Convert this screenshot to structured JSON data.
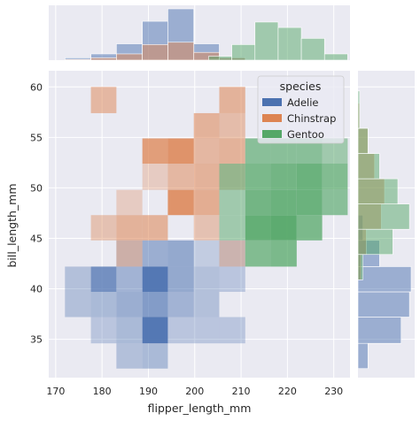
{
  "chart_data": {
    "type": "heatmap",
    "xlabel": "flipper_length_mm",
    "ylabel": "bill_length_mm",
    "xlim": [
      168.5,
      233.5
    ],
    "ylim": [
      31.2,
      61.6
    ],
    "x_ticks": [
      170,
      180,
      190,
      200,
      210,
      220,
      230
    ],
    "y_ticks": [
      35,
      40,
      45,
      50,
      55,
      60
    ],
    "grid": true,
    "background": "#eaeaf2",
    "x_bin_edges": [
      172,
      177.6,
      183.1,
      188.7,
      194.2,
      199.8,
      205.3,
      210.9,
      216.4,
      222,
      227.5,
      233
    ],
    "y_bin_edges": [
      32.1,
      34.6,
      37.2,
      39.7,
      42.2,
      44.8,
      47.3,
      49.8,
      52.4,
      54.9,
      57.4,
      60
    ],
    "legend": {
      "title": "species",
      "position": "upper-right",
      "entries": [
        {
          "name": "Adelie",
          "color": "#4c72b0"
        },
        {
          "name": "Chinstrap",
          "color": "#dd8452"
        },
        {
          "name": "Gentoo",
          "color": "#55a868"
        }
      ]
    },
    "series": [
      {
        "name": "Adelie",
        "color": "#4c72b0",
        "cells": [
          [
            0,
            2,
            0.35
          ],
          [
            0,
            3,
            0.35
          ],
          [
            1,
            1,
            0.3
          ],
          [
            1,
            2,
            0.4
          ],
          [
            1,
            3,
            0.75
          ],
          [
            2,
            0,
            0.35
          ],
          [
            2,
            1,
            0.4
          ],
          [
            2,
            2,
            0.5
          ],
          [
            2,
            3,
            0.45
          ],
          [
            2,
            4,
            0.25
          ],
          [
            3,
            0,
            0.4
          ],
          [
            3,
            1,
            0.95
          ],
          [
            3,
            2,
            0.65
          ],
          [
            3,
            3,
            0.95
          ],
          [
            3,
            4,
            0.5
          ],
          [
            4,
            1,
            0.3
          ],
          [
            4,
            2,
            0.45
          ],
          [
            4,
            3,
            0.55
          ],
          [
            4,
            4,
            0.55
          ],
          [
            5,
            1,
            0.3
          ],
          [
            5,
            2,
            0.35
          ],
          [
            5,
            3,
            0.35
          ],
          [
            5,
            4,
            0.25
          ],
          [
            6,
            1,
            0.3
          ],
          [
            6,
            3,
            0.3
          ],
          [
            6,
            4,
            0.25
          ]
        ]
      },
      {
        "name": "Chinstrap",
        "color": "#dd8452",
        "cells": [
          [
            1,
            5,
            0.4
          ],
          [
            1,
            10,
            0.5
          ],
          [
            2,
            4,
            0.4
          ],
          [
            2,
            5,
            0.55
          ],
          [
            2,
            6,
            0.3
          ],
          [
            3,
            5,
            0.55
          ],
          [
            3,
            7,
            0.3
          ],
          [
            3,
            8,
            0.75
          ],
          [
            4,
            6,
            0.85
          ],
          [
            4,
            7,
            0.5
          ],
          [
            4,
            8,
            0.85
          ],
          [
            5,
            5,
            0.4
          ],
          [
            5,
            6,
            0.6
          ],
          [
            5,
            7,
            0.55
          ],
          [
            5,
            8,
            0.5
          ],
          [
            5,
            9,
            0.55
          ],
          [
            6,
            4,
            0.35
          ],
          [
            6,
            7,
            0.35
          ],
          [
            6,
            8,
            0.55
          ],
          [
            6,
            9,
            0.45
          ],
          [
            6,
            10,
            0.55
          ]
        ]
      },
      {
        "name": "Gentoo",
        "color": "#55a868",
        "cells": [
          [
            6,
            5,
            0.5
          ],
          [
            6,
            6,
            0.5
          ],
          [
            6,
            7,
            0.55
          ],
          [
            7,
            4,
            0.7
          ],
          [
            7,
            5,
            0.9
          ],
          [
            7,
            6,
            0.8
          ],
          [
            7,
            7,
            0.75
          ],
          [
            7,
            8,
            0.65
          ],
          [
            8,
            4,
            0.75
          ],
          [
            8,
            5,
            0.95
          ],
          [
            8,
            6,
            0.85
          ],
          [
            8,
            7,
            0.8
          ],
          [
            8,
            8,
            0.65
          ],
          [
            9,
            5,
            0.75
          ],
          [
            9,
            6,
            0.85
          ],
          [
            9,
            7,
            0.85
          ],
          [
            9,
            8,
            0.65
          ],
          [
            10,
            6,
            0.65
          ],
          [
            10,
            7,
            0.7
          ],
          [
            10,
            8,
            0.5
          ]
        ]
      }
    ],
    "marginal_x": {
      "series": [
        {
          "name": "Adelie",
          "bin_edges": [
            172,
            177.6,
            183.1,
            188.7,
            194.2,
            199.8,
            205.3,
            210.9
          ],
          "counts": [
            3,
            8,
            21,
            50,
            66,
            21,
            4
          ]
        },
        {
          "name": "Chinstrap",
          "bin_edges": [
            172,
            177.6,
            183.1,
            188.7,
            194.2,
            199.8,
            205.3,
            210.9
          ],
          "counts": [
            1,
            3,
            8,
            20,
            23,
            10,
            3
          ]
        },
        {
          "name": "Gentoo",
          "bin_edges": [
            203,
            208,
            213,
            218,
            223,
            228,
            233
          ],
          "counts": [
            5,
            20,
            49,
            42,
            28,
            8
          ]
        }
      ]
    },
    "marginal_y": {
      "series": [
        {
          "name": "Adelie",
          "bin_edges": [
            32.1,
            34.6,
            37.2,
            39.7,
            42.2,
            44.8,
            47.3
          ],
          "counts": [
            6,
            26,
            31,
            32,
            13,
            3
          ]
        },
        {
          "name": "Chinstrap",
          "bin_edges": [
            40.9,
            43.4,
            45.9,
            48.4,
            50.9,
            53.4,
            55.9,
            58.4
          ],
          "counts": [
            2,
            5,
            14,
            16,
            10,
            6,
            1
          ]
        },
        {
          "name": "Gentoo",
          "bin_edges": [
            40.9,
            43.4,
            45.9,
            48.4,
            50.9,
            53.4,
            55.9,
            59.6
          ],
          "counts": [
            3,
            21,
            31,
            24,
            13,
            6,
            1
          ]
        }
      ]
    }
  }
}
